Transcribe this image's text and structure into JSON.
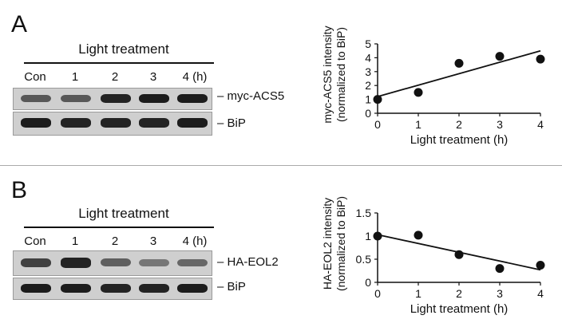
{
  "panels": [
    {
      "letter": "A",
      "blot": {
        "header": "Light treatment",
        "lanes": [
          "Con",
          "1",
          "2",
          "3",
          "4 (h)"
        ],
        "rows": [
          {
            "label": "myc-ACS5",
            "intensities": [
              0.55,
              0.55,
              0.9,
              0.95,
              0.95
            ]
          },
          {
            "label": "BiP",
            "intensities": [
              0.95,
              0.9,
              0.9,
              0.9,
              0.95
            ]
          }
        ]
      }
    },
    {
      "letter": "B",
      "blot": {
        "header": "Light treatment",
        "lanes": [
          "Con",
          "1",
          "2",
          "3",
          "4 (h)"
        ],
        "rows": [
          {
            "label": "HA-EOL2",
            "intensities": [
              0.7,
              0.9,
              0.5,
              0.35,
              0.45
            ]
          },
          {
            "label": "BiP",
            "intensities": [
              0.95,
              0.95,
              0.9,
              0.9,
              0.95
            ]
          }
        ]
      }
    }
  ],
  "chart_data": [
    {
      "type": "scatter",
      "title": "",
      "xlabel": "Light treatment (h)",
      "ylabel_lines": [
        "myc-ACS5 intensity",
        "(normalized to BiP)"
      ],
      "xlim": [
        0,
        4
      ],
      "ylim": [
        0,
        5
      ],
      "xticks": [
        0,
        1,
        2,
        3,
        4
      ],
      "yticks": [
        0,
        1,
        2,
        3,
        4,
        5
      ],
      "x": [
        0,
        1,
        2,
        3,
        4
      ],
      "y": [
        1.0,
        1.5,
        3.6,
        4.1,
        3.9
      ],
      "trendline": {
        "x": [
          0,
          4
        ],
        "y": [
          1.2,
          4.5
        ]
      },
      "grid": false
    },
    {
      "type": "scatter",
      "title": "",
      "xlabel": "Light treatment (h)",
      "ylabel_lines": [
        "HA-EOL2 intensity",
        "(normalized to BiP)"
      ],
      "xlim": [
        0,
        4
      ],
      "ylim": [
        0,
        1.5
      ],
      "xticks": [
        0,
        1,
        2,
        3,
        4
      ],
      "yticks": [
        0,
        0.5,
        1,
        1.5
      ],
      "ytick_labels": [
        "0",
        "0.5",
        "1",
        "1.5"
      ],
      "x": [
        0,
        1,
        2,
        3,
        4
      ],
      "y": [
        1.0,
        1.02,
        0.6,
        0.3,
        0.37
      ],
      "trendline": {
        "x": [
          0,
          4
        ],
        "y": [
          1.03,
          0.27
        ]
      },
      "grid": false
    }
  ]
}
